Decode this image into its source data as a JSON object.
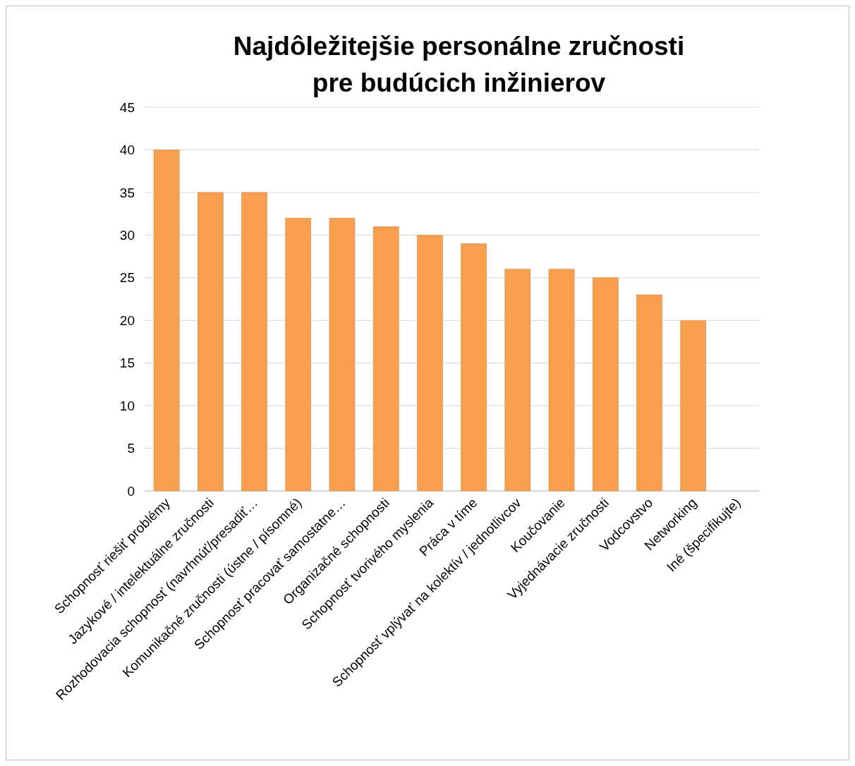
{
  "chart_data": {
    "type": "bar",
    "title": "Najdôležitejšie personálne zručnosti\npre budúcich inžinierov",
    "categories": [
      "Schopnosť riešiť problémy",
      "Jazykové / intelektuálne zručnosti",
      "Rozhodovacia schopnosť (navrhnúť/presadiť…",
      "Komunikačné zručnosti (ústne / písomné)",
      "Schopnosť pracovať samostatne…",
      "Organizačné schopnosti",
      "Schopnosť tvorivého myslenia",
      "Práca v tíme",
      "Schopnosť vplývať na kolektív / jednotlivcov",
      "Koučovanie",
      "Vyjednávacie zručnosti",
      "Vodcovstvo",
      "Networking",
      "Iné (špecifikujte)"
    ],
    "values": [
      40,
      35,
      35,
      32,
      32,
      31,
      30,
      29,
      26,
      26,
      25,
      23,
      20,
      0
    ],
    "color": "#f79f4f",
    "ylim": [
      0,
      45
    ],
    "yticks": [
      0,
      5,
      10,
      15,
      20,
      25,
      30,
      35,
      40,
      45
    ],
    "grid": "y"
  }
}
